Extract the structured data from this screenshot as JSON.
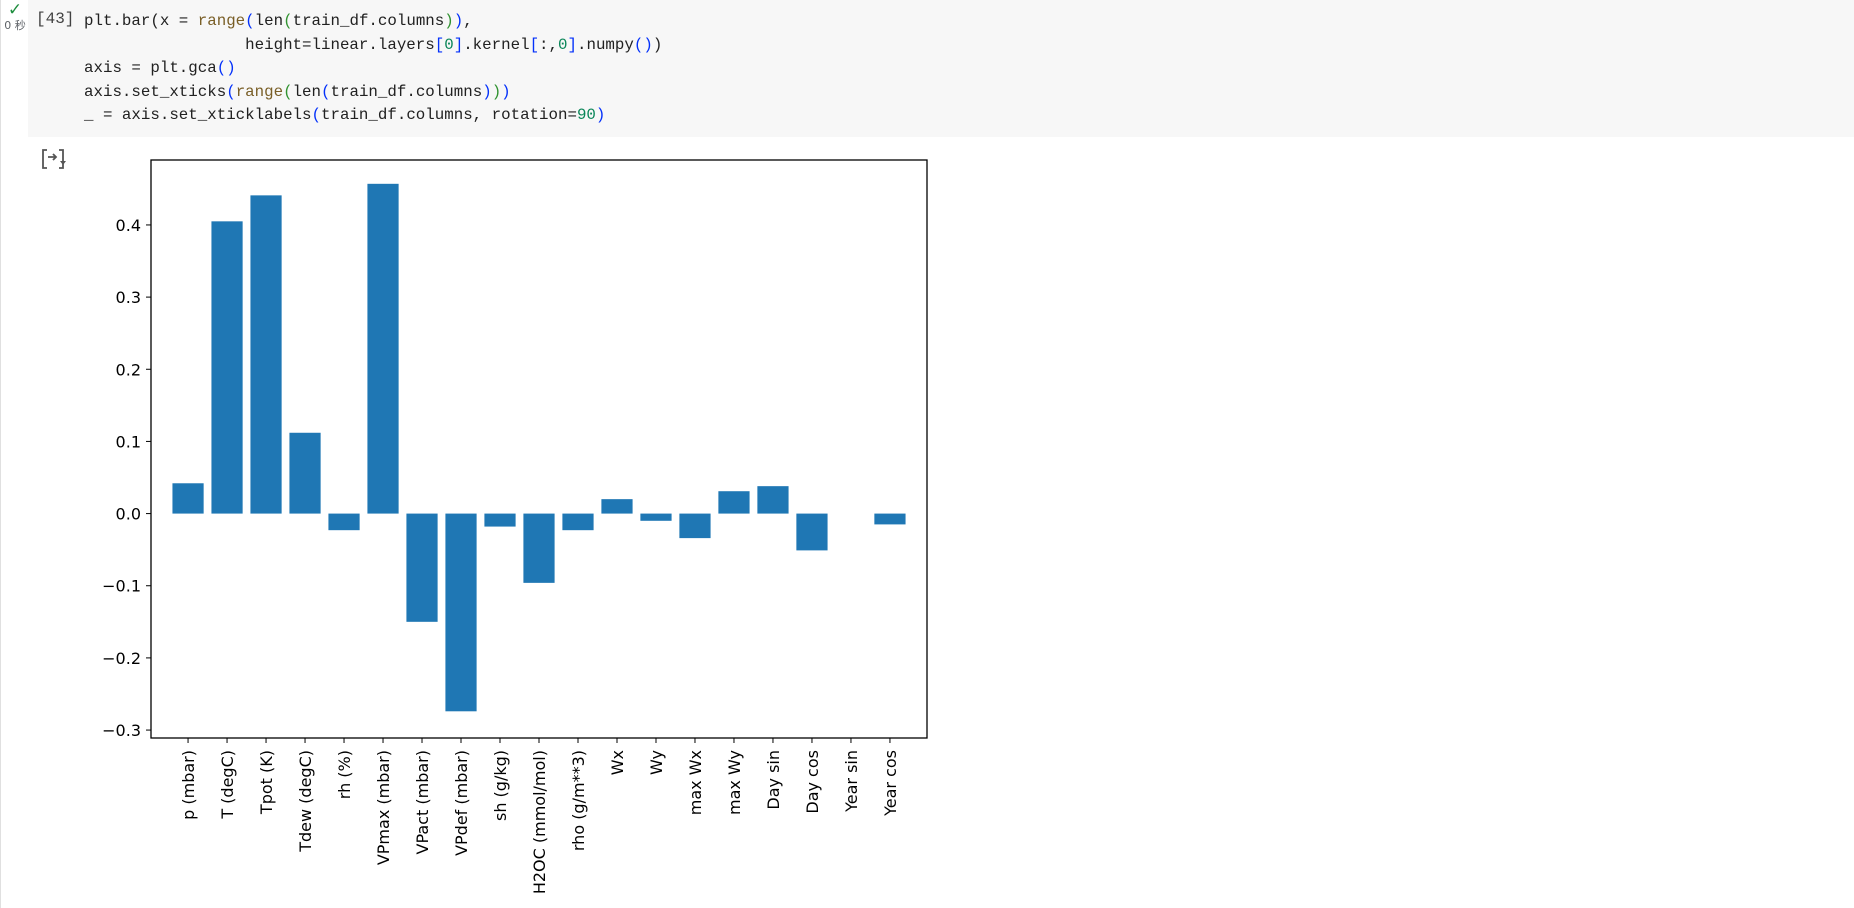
{
  "cell": {
    "status_icon": "check-icon",
    "exec_time": "0 秒",
    "exec_count": "[43]",
    "output_icon": "output-toggle-icon"
  },
  "code_lines": [
    "plt.bar(x = range(len(train_df.columns)),",
    "        height=linear.layers[0].kernel[:,0].numpy())",
    "axis = plt.gca()",
    "axis.set_xticks(range(len(train_df.columns)))",
    "_ = axis.set_xticklabels(train_df.columns, rotation=90)"
  ],
  "colors": {
    "bar": "#1f77b4",
    "check": "#1e8e3e",
    "accent": "#e53935"
  },
  "chart_data": {
    "type": "bar",
    "categories": [
      "p (mbar)",
      "T (degC)",
      "Tpot (K)",
      "Tdew (degC)",
      "rh (%)",
      "VPmax (mbar)",
      "VPact (mbar)",
      "VPdef (mbar)",
      "sh (g/kg)",
      "H2OC (mmol/mol)",
      "rho (g/m**3)",
      "Wx",
      "Wy",
      "max Wx",
      "max Wy",
      "Day sin",
      "Day cos",
      "Year sin",
      "Year cos"
    ],
    "values": [
      0.042,
      0.405,
      0.441,
      0.112,
      -0.023,
      0.457,
      -0.15,
      -0.274,
      -0.018,
      -0.096,
      -0.023,
      0.02,
      -0.01,
      -0.034,
      0.031,
      0.038,
      -0.051,
      0.0,
      -0.015
    ],
    "yticks": [
      0.4,
      0.3,
      0.2,
      0.1,
      0.0,
      -0.1,
      -0.2,
      -0.3
    ],
    "ytick_labels": [
      "0.4",
      "0.3",
      "0.2",
      "0.1",
      "0.0",
      "−0.1",
      "−0.2",
      "−0.3"
    ],
    "ylim": [
      -0.311,
      0.49
    ],
    "title": "",
    "xlabel": "",
    "ylabel": "",
    "grid": false
  }
}
